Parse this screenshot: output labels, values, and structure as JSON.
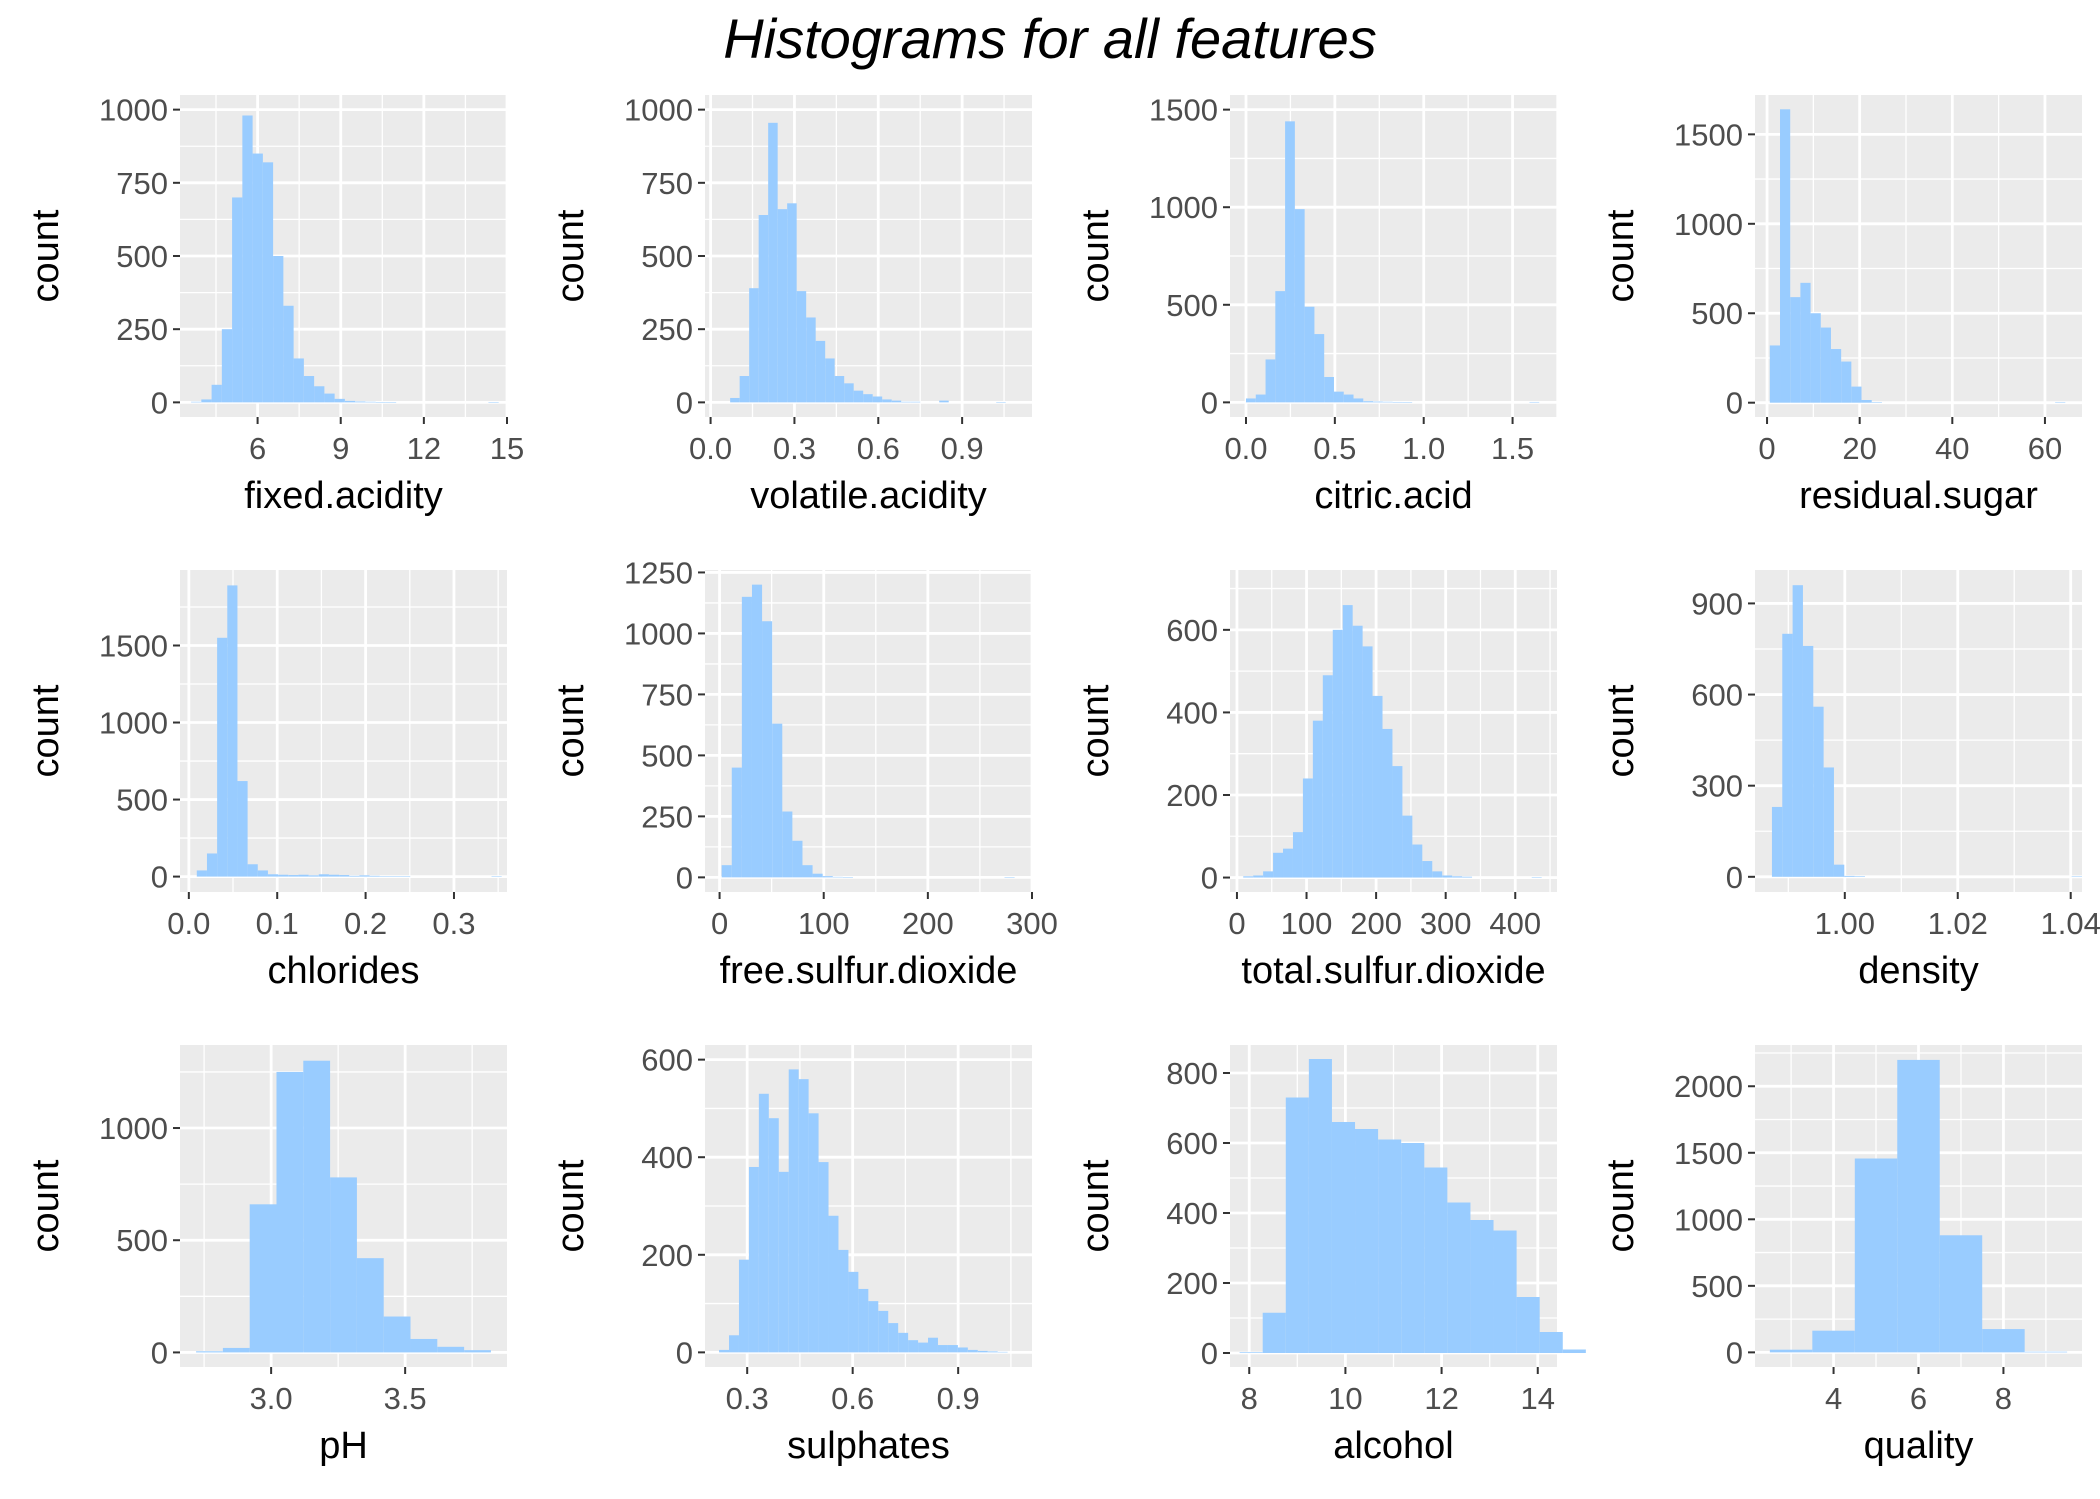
{
  "title": "Histograms for all features",
  "colors": {
    "bar": "#99ccff",
    "panel": "#ebebeb",
    "grid": "#ffffff",
    "tick": "#4d4d4d",
    "text": "#000000"
  },
  "chart_data": [
    {
      "type": "bar",
      "xlabel": "fixed.acidity",
      "ylabel": "count",
      "x_start": 3.6,
      "bin_width": 0.37,
      "values": [
        2,
        10,
        60,
        250,
        700,
        980,
        850,
        820,
        500,
        330,
        150,
        90,
        55,
        30,
        12,
        5,
        3,
        2,
        1,
        1,
        0,
        0,
        0,
        0,
        0,
        0,
        0,
        0,
        0,
        1
      ],
      "xlim": [
        3.2,
        15
      ],
      "xticks": [
        6,
        9,
        12,
        15
      ],
      "xticklabels": [
        "6",
        "9",
        "12",
        "15"
      ],
      "ylim": [
        -50,
        1050
      ],
      "yticks": [
        0,
        250,
        500,
        750,
        1000
      ],
      "yticklabels": [
        "0",
        "250",
        "500",
        "750",
        "1000"
      ]
    },
    {
      "type": "bar",
      "xlabel": "volatile.acidity",
      "ylabel": "count",
      "x_start": 0.07,
      "bin_width": 0.034,
      "values": [
        15,
        90,
        390,
        640,
        955,
        660,
        680,
        380,
        290,
        210,
        150,
        90,
        65,
        40,
        28,
        20,
        10,
        6,
        2,
        2,
        0,
        0,
        6,
        0,
        0,
        0,
        0,
        0,
        1
      ],
      "xlim": [
        -0.02,
        1.15
      ],
      "xticks": [
        0,
        0.3,
        0.6,
        0.9
      ],
      "xticklabels": [
        "0.0",
        "0.3",
        "0.6",
        "0.9"
      ],
      "ylim": [
        -50,
        1050
      ],
      "yticks": [
        0,
        250,
        500,
        750,
        1000
      ],
      "yticklabels": [
        "0",
        "250",
        "500",
        "750",
        "1000"
      ]
    },
    {
      "type": "bar",
      "xlabel": "citric.acid",
      "ylabel": "count",
      "x_start": 0.0,
      "bin_width": 0.055,
      "values": [
        20,
        40,
        220,
        570,
        1440,
        990,
        490,
        350,
        130,
        55,
        40,
        20,
        6,
        4,
        3,
        2,
        1,
        0,
        0,
        0,
        0,
        0,
        0,
        0,
        0,
        0,
        0,
        0,
        0,
        2
      ],
      "xlim": [
        -0.09,
        1.75
      ],
      "xticks": [
        0,
        0.5,
        1.0,
        1.5
      ],
      "xticklabels": [
        "0.0",
        "0.5",
        "1.0",
        "1.5"
      ],
      "ylim": [
        -75,
        1575
      ],
      "yticks": [
        0,
        500,
        1000,
        1500
      ],
      "yticklabels": [
        "0",
        "500",
        "1000",
        "1500"
      ]
    },
    {
      "type": "bar",
      "xlabel": "residual.sugar",
      "ylabel": "count",
      "x_start": 0.6,
      "bin_width": 2.2,
      "values": [
        320,
        1640,
        590,
        670,
        500,
        420,
        300,
        230,
        90,
        15,
        3,
        0,
        0,
        0,
        0,
        0,
        0,
        0,
        0,
        0,
        0,
        0,
        0,
        0,
        0,
        0,
        0,
        0,
        1
      ],
      "xlim": [
        -2.6,
        68
      ],
      "xticks": [
        0,
        20,
        40,
        60
      ],
      "xticklabels": [
        "0",
        "20",
        "40",
        "60"
      ],
      "ylim": [
        -80,
        1720
      ],
      "yticks": [
        0,
        500,
        1000,
        1500
      ],
      "yticklabels": [
        "0",
        "500",
        "1000",
        "1500"
      ]
    },
    {
      "type": "bar",
      "xlabel": "chlorides",
      "ylabel": "count",
      "x_start": 0.009,
      "bin_width": 0.0115,
      "values": [
        40,
        150,
        1550,
        1890,
        620,
        80,
        40,
        15,
        12,
        10,
        12,
        8,
        15,
        12,
        10,
        5,
        8,
        5,
        3,
        2,
        1,
        0,
        0,
        0,
        0,
        0,
        0,
        0,
        0,
        1
      ],
      "xlim": [
        -0.01,
        0.36
      ],
      "xticks": [
        0,
        0.1,
        0.2,
        0.3
      ],
      "xticklabels": [
        "0.0",
        "0.1",
        "0.2",
        "0.3"
      ],
      "ylim": [
        -100,
        1990
      ],
      "yticks": [
        0,
        500,
        1000,
        1500
      ],
      "yticklabels": [
        "0",
        "500",
        "1000",
        "1500"
      ]
    },
    {
      "type": "bar",
      "xlabel": "free.sulfur.dioxide",
      "ylabel": "count",
      "x_start": 2,
      "bin_width": 9.7,
      "values": [
        50,
        450,
        1150,
        1200,
        1050,
        630,
        270,
        150,
        50,
        15,
        5,
        2,
        1,
        0,
        0,
        0,
        0,
        0,
        0,
        0,
        0,
        0,
        0,
        0,
        0,
        0,
        0,
        0,
        1
      ],
      "xlim": [
        -14,
        300
      ],
      "xticks": [
        0,
        100,
        200,
        300
      ],
      "xticklabels": [
        "0",
        "100",
        "200",
        "300"
      ],
      "ylim": [
        -60,
        1260
      ],
      "yticks": [
        0,
        250,
        500,
        750,
        1000,
        1250
      ],
      "yticklabels": [
        "0",
        "250",
        "500",
        "750",
        "1000",
        "1250"
      ]
    },
    {
      "type": "bar",
      "xlabel": "total.sulfur.dioxide",
      "ylabel": "count",
      "x_start": 9,
      "bin_width": 14.3,
      "values": [
        3,
        5,
        15,
        60,
        70,
        110,
        240,
        380,
        490,
        600,
        660,
        610,
        560,
        440,
        360,
        270,
        150,
        80,
        40,
        15,
        5,
        3,
        2,
        0,
        0,
        0,
        0,
        0,
        0,
        1
      ],
      "xlim": [
        -10,
        460
      ],
      "xticks": [
        0,
        100,
        200,
        300,
        400
      ],
      "xticklabels": [
        "0",
        "100",
        "200",
        "300",
        "400"
      ],
      "ylim": [
        -35,
        745
      ],
      "yticks": [
        0,
        200,
        400,
        600
      ],
      "yticklabels": [
        "0",
        "200",
        "400",
        "600"
      ]
    },
    {
      "type": "bar",
      "xlabel": "density",
      "ylabel": "count",
      "x_start": 0.9871,
      "bin_width": 0.00183,
      "values": [
        230,
        800,
        960,
        760,
        560,
        360,
        40,
        3,
        2,
        0,
        0,
        0,
        0,
        0,
        0,
        0,
        0,
        0,
        0,
        0,
        0,
        0,
        0,
        0,
        0,
        0,
        0,
        0,
        0,
        1
      ],
      "xlim": [
        0.9841,
        1.042
      ],
      "xticks": [
        1.0,
        1.02,
        1.04
      ],
      "xticklabels": [
        "1.00",
        "1.02",
        "1.04"
      ],
      "ylim": [
        -50,
        1010
      ],
      "yticks": [
        0,
        300,
        600,
        900
      ],
      "yticklabels": [
        "0",
        "300",
        "600",
        "900"
      ]
    },
    {
      "type": "bar",
      "xlabel": "pH",
      "ylabel": "count",
      "x_start": 2.72,
      "bin_width": 0.1,
      "values": [
        5,
        20,
        660,
        1250,
        1300,
        780,
        420,
        160,
        60,
        25,
        10
      ],
      "xlim": [
        2.66,
        3.88
      ],
      "xticks": [
        3.0,
        3.5
      ],
      "xticklabels": [
        "3.0",
        "3.5"
      ],
      "ylim": [
        -65,
        1370
      ],
      "yticks": [
        0,
        500,
        1000
      ],
      "yticklabels": [
        "0",
        "500",
        "1000"
      ]
    },
    {
      "type": "bar",
      "xlabel": "sulphates",
      "ylabel": "count",
      "x_start": 0.22,
      "bin_width": 0.0283,
      "values": [
        5,
        35,
        190,
        380,
        530,
        480,
        370,
        580,
        560,
        490,
        390,
        280,
        210,
        165,
        130,
        105,
        85,
        60,
        40,
        25,
        20,
        30,
        15,
        15,
        10,
        5,
        3,
        2,
        1
      ],
      "xlim": [
        0.18,
        1.11
      ],
      "xticks": [
        0.3,
        0.6,
        0.9
      ],
      "xticklabels": [
        "0.3",
        "0.6",
        "0.9"
      ],
      "ylim": [
        -30,
        630
      ],
      "yticks": [
        0,
        200,
        400,
        600
      ],
      "yticklabels": [
        "0",
        "200",
        "400",
        "600"
      ]
    },
    {
      "type": "bar",
      "xlabel": "alcohol",
      "ylabel": "count",
      "x_start": 7.8,
      "bin_width": 0.48,
      "values": [
        2,
        115,
        730,
        840,
        660,
        640,
        610,
        600,
        530,
        430,
        380,
        350,
        160,
        60,
        10
      ],
      "xlim": [
        7.6,
        14.4
      ],
      "xticks": [
        8,
        10,
        12,
        14
      ],
      "xticklabels": [
        "8",
        "10",
        "12",
        "14"
      ],
      "ylim": [
        -40,
        880
      ],
      "yticks": [
        0,
        200,
        400,
        600,
        800
      ],
      "yticklabels": [
        "0",
        "200",
        "400",
        "600",
        "800"
      ]
    },
    {
      "type": "bar",
      "xlabel": "quality",
      "ylabel": "count",
      "x_start": 2.5,
      "bin_width": 1,
      "values": [
        20,
        163,
        1457,
        2198,
        880,
        175,
        5
      ],
      "xlim": [
        2.15,
        9.85
      ],
      "xticks": [
        4,
        6,
        8
      ],
      "xticklabels": [
        "4",
        "6",
        "8"
      ],
      "ylim": [
        -110,
        2310
      ],
      "yticks": [
        0,
        500,
        1000,
        1500,
        2000
      ],
      "yticklabels": [
        "0",
        "500",
        "1000",
        "1500",
        "2000"
      ]
    }
  ]
}
